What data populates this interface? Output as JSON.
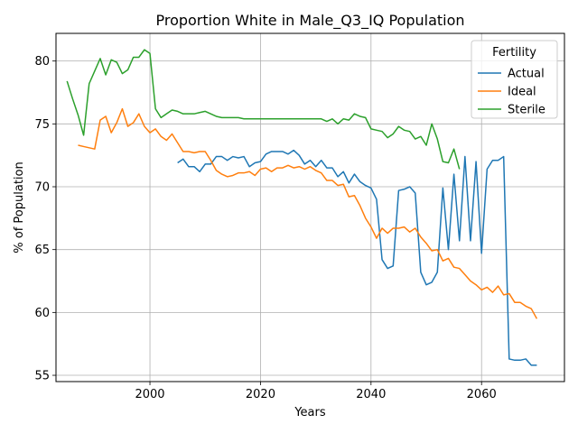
{
  "chart_data": {
    "type": "line",
    "title": "Proportion White in Male_Q3_IQ Population",
    "xlabel": "Years",
    "ylabel": "% of Population",
    "xlim": [
      1983,
      2075
    ],
    "ylim": [
      54.5,
      82.2
    ],
    "x_ticks": [
      2000,
      2020,
      2040,
      2060
    ],
    "y_ticks": [
      55,
      60,
      65,
      70,
      75,
      80
    ],
    "grid": true,
    "legend": {
      "title": "Fertility",
      "position": "top-right"
    },
    "series": [
      {
        "name": "Actual",
        "color": "#1f77b4",
        "x": [
          2005,
          2006,
          2007,
          2008,
          2009,
          2010,
          2011,
          2012,
          2013,
          2014,
          2015,
          2016,
          2017,
          2018,
          2019,
          2020,
          2021,
          2022,
          2023,
          2024,
          2025,
          2026,
          2027,
          2028,
          2029,
          2030,
          2031,
          2032,
          2033,
          2034,
          2035,
          2036,
          2037,
          2038,
          2039,
          2040,
          2041,
          2042,
          2043,
          2044,
          2045,
          2046,
          2047,
          2048,
          2049,
          2050,
          2051,
          2052,
          2053,
          2054,
          2055,
          2056,
          2057,
          2058,
          2059,
          2060,
          2061,
          2062,
          2063,
          2064,
          2065,
          2066,
          2067,
          2068,
          2069,
          2070
        ],
        "y": [
          71.9,
          72.2,
          71.6,
          71.6,
          71.2,
          71.8,
          71.8,
          72.4,
          72.4,
          72.1,
          72.4,
          72.3,
          72.4,
          71.6,
          71.9,
          72.0,
          72.6,
          72.8,
          72.8,
          72.8,
          72.6,
          72.9,
          72.5,
          71.8,
          72.1,
          71.6,
          72.1,
          71.5,
          71.5,
          70.8,
          71.2,
          70.3,
          71.0,
          70.4,
          70.1,
          69.9,
          69.0,
          64.2,
          63.5,
          63.7,
          69.7,
          69.8,
          70.0,
          69.5,
          63.2,
          62.2,
          62.4,
          63.2,
          69.9,
          65.0,
          71.0,
          65.7,
          72.4,
          65.7,
          72.0,
          64.7,
          71.4,
          72.1,
          72.1,
          72.4,
          56.3,
          56.2,
          56.2,
          56.3,
          55.8,
          55.8
        ]
      },
      {
        "name": "Ideal",
        "color": "#ff7f0e",
        "x": [
          1987,
          1988,
          1989,
          1990,
          1991,
          1992,
          1993,
          1994,
          1995,
          1996,
          1997,
          1998,
          1999,
          2000,
          2001,
          2002,
          2003,
          2004,
          2005,
          2006,
          2007,
          2008,
          2009,
          2010,
          2011,
          2012,
          2013,
          2014,
          2015,
          2016,
          2017,
          2018,
          2019,
          2020,
          2021,
          2022,
          2023,
          2024,
          2025,
          2026,
          2027,
          2028,
          2029,
          2030,
          2031,
          2032,
          2033,
          2034,
          2035,
          2036,
          2037,
          2038,
          2039,
          2040,
          2041,
          2042,
          2043,
          2044,
          2045,
          2046,
          2047,
          2048,
          2049,
          2050,
          2051,
          2052,
          2053,
          2054,
          2055,
          2056,
          2057,
          2058,
          2059,
          2060,
          2061,
          2062,
          2063,
          2064,
          2065,
          2066,
          2067,
          2068,
          2069,
          2070
        ],
        "y": [
          73.3,
          73.2,
          73.1,
          73.0,
          75.3,
          75.6,
          74.3,
          75.1,
          76.2,
          74.8,
          75.1,
          75.8,
          74.8,
          74.3,
          74.6,
          74.0,
          73.7,
          74.2,
          73.5,
          72.8,
          72.8,
          72.7,
          72.8,
          72.8,
          72.1,
          71.3,
          71.0,
          70.8,
          70.9,
          71.1,
          71.1,
          71.2,
          70.9,
          71.4,
          71.5,
          71.2,
          71.5,
          71.5,
          71.7,
          71.5,
          71.6,
          71.4,
          71.6,
          71.3,
          71.1,
          70.5,
          70.5,
          70.1,
          70.2,
          69.2,
          69.3,
          68.5,
          67.5,
          66.8,
          65.9,
          66.7,
          66.3,
          66.7,
          66.7,
          66.8,
          66.4,
          66.7,
          66.0,
          65.5,
          64.9,
          65.0,
          64.1,
          64.3,
          63.6,
          63.5,
          63.0,
          62.5,
          62.2,
          61.8,
          62.0,
          61.6,
          62.1,
          61.4,
          61.5,
          60.8,
          60.8,
          60.5,
          60.3,
          59.5
        ]
      },
      {
        "name": "Sterile",
        "color": "#2ca02c",
        "x": [
          1985,
          1986,
          1987,
          1988,
          1989,
          1990,
          1991,
          1992,
          1993,
          1994,
          1995,
          1996,
          1997,
          1998,
          1999,
          2000,
          2001,
          2002,
          2003,
          2004,
          2005,
          2006,
          2007,
          2008,
          2009,
          2010,
          2011,
          2012,
          2013,
          2014,
          2015,
          2016,
          2017,
          2018,
          2019,
          2020,
          2021,
          2022,
          2023,
          2024,
          2025,
          2026,
          2027,
          2028,
          2029,
          2030,
          2031,
          2032,
          2033,
          2034,
          2035,
          2036,
          2037,
          2038,
          2039,
          2040,
          2041,
          2042,
          2043,
          2044,
          2045,
          2046,
          2047,
          2048,
          2049,
          2050,
          2051,
          2052,
          2053,
          2054,
          2055,
          2056
        ],
        "y": [
          78.4,
          77.0,
          75.7,
          74.1,
          78.2,
          79.2,
          80.2,
          78.9,
          80.1,
          79.9,
          79.0,
          79.3,
          80.3,
          80.3,
          80.9,
          80.6,
          76.2,
          75.5,
          75.8,
          76.1,
          76.0,
          75.8,
          75.8,
          75.8,
          75.9,
          76.0,
          75.8,
          75.6,
          75.5,
          75.5,
          75.5,
          75.5,
          75.4,
          75.4,
          75.4,
          75.4,
          75.4,
          75.4,
          75.4,
          75.4,
          75.4,
          75.4,
          75.4,
          75.4,
          75.4,
          75.4,
          75.4,
          75.2,
          75.4,
          75.0,
          75.4,
          75.3,
          75.8,
          75.6,
          75.5,
          74.6,
          74.5,
          74.4,
          73.9,
          74.2,
          74.8,
          74.5,
          74.4,
          73.8,
          74.0,
          73.3,
          75.0,
          73.8,
          72.0,
          71.9,
          73.0,
          71.4
        ]
      }
    ]
  }
}
